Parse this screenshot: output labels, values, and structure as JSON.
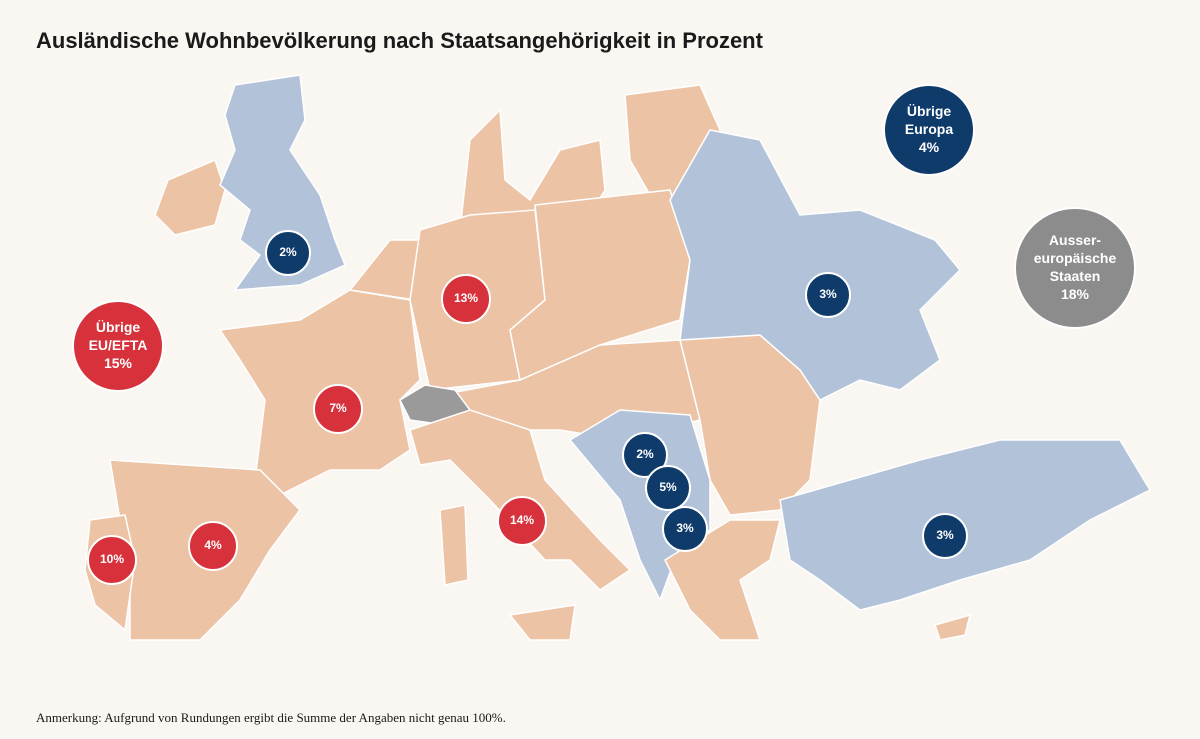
{
  "title": "Ausländische Wohnbevölkerung nach Staatsangehörigkeit in Prozent",
  "note": "Anmerkung: Aufgrund von Rundungen ergibt die Summe der Angaben nicht genau 100%.",
  "bubbles": [
    {
      "lines": [
        "2%"
      ],
      "color": "#0f3b6b"
    },
    {
      "lines": [
        "13%"
      ],
      "color": "#d7323b"
    },
    {
      "lines": [
        "7%"
      ],
      "color": "#d7323b"
    },
    {
      "lines": [
        "4%"
      ],
      "color": "#d7323b"
    },
    {
      "lines": [
        "10%"
      ],
      "color": "#d7323b"
    },
    {
      "lines": [
        "14%"
      ],
      "color": "#d7323b"
    },
    {
      "lines": [
        "2%"
      ],
      "color": "#0f3b6b"
    },
    {
      "lines": [
        "5%"
      ],
      "color": "#0f3b6b"
    },
    {
      "lines": [
        "3%"
      ],
      "color": "#0f3b6b"
    },
    {
      "lines": [
        "3%"
      ],
      "color": "#0f3b6b"
    },
    {
      "lines": [
        "3%"
      ],
      "color": "#0f3b6b"
    },
    {
      "lines": [
        "Übrige",
        "Europa",
        "4%"
      ],
      "color": "#0f3b6b"
    },
    {
      "lines": [
        "Ausser-",
        "europäische",
        "Staaten",
        "18%"
      ],
      "color": "#8c8c8c"
    },
    {
      "lines": [
        "Übrige",
        "EU/EFTA",
        "15%"
      ],
      "color": "#d7323b"
    }
  ]
}
